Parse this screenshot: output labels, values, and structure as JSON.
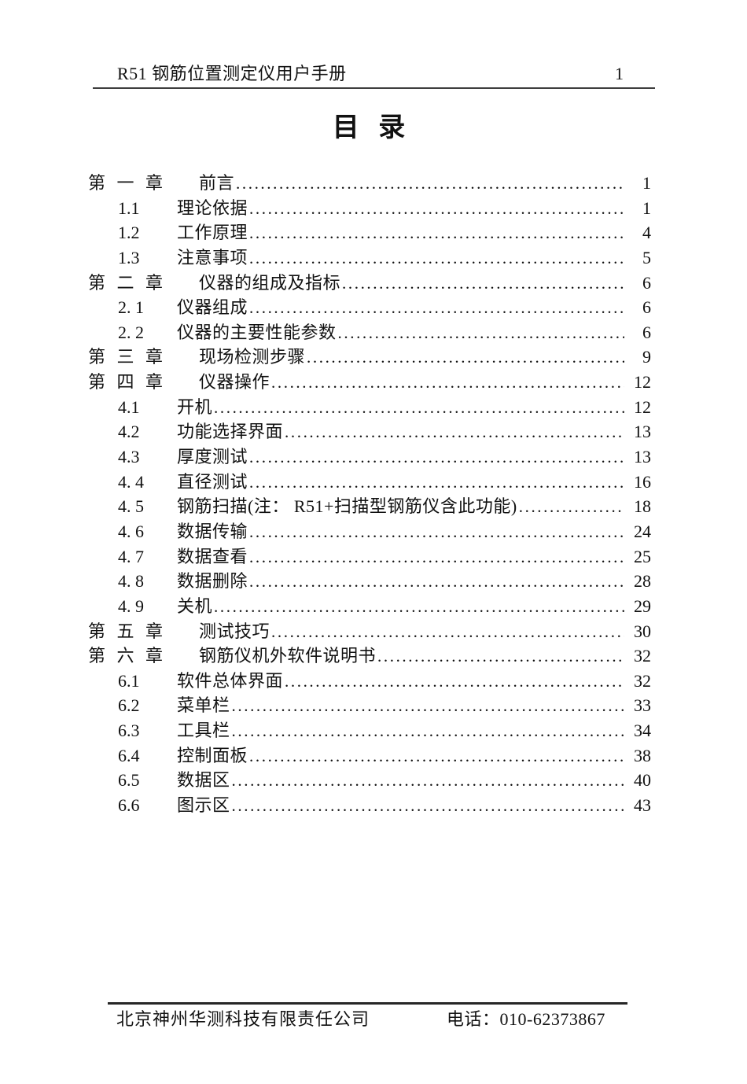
{
  "header": {
    "title": "R51 钢筋位置测定仪用户手册",
    "page_number": "1"
  },
  "doc_title": "目 录",
  "toc": {
    "entries": [
      {
        "num": "第 一 章",
        "title": "前言",
        "page": "1"
      },
      {
        "num": "1.1",
        "title": "理论依据",
        "page": "1"
      },
      {
        "num": "1.2",
        "title": "工作原理",
        "page": "4"
      },
      {
        "num": "1.3",
        "title": "注意事项",
        "page": "5"
      },
      {
        "num": "第 二 章",
        "title": "仪器的组成及指标",
        "page": "6"
      },
      {
        "num": "2. 1",
        "title": "仪器组成",
        "page": "6"
      },
      {
        "num": "2. 2",
        "title": "仪器的主要性能参数",
        "page": "6"
      },
      {
        "num": "第 三 章",
        "title": "现场检测步骤",
        "page": "9"
      },
      {
        "num": "第 四 章",
        "title": "仪器操作",
        "page": "12"
      },
      {
        "num": "4.1",
        "title": "开机",
        "page": "12"
      },
      {
        "num": "4.2",
        "title": "功能选择界面",
        "page": "13"
      },
      {
        "num": "4.3",
        "title": "厚度测试",
        "page": "13"
      },
      {
        "num": "4. 4",
        "title": "直径测试",
        "page": "16"
      },
      {
        "num": "4. 5",
        "title": "钢筋扫描(注： R51+扫描型钢筋仪含此功能)",
        "page": "18"
      },
      {
        "num": "4. 6",
        "title": "数据传输",
        "page": "24"
      },
      {
        "num": "4. 7",
        "title": "数据查看",
        "page": "25"
      },
      {
        "num": "4. 8",
        "title": "数据删除",
        "page": "28"
      },
      {
        "num": "4. 9",
        "title": "关机",
        "page": "29"
      },
      {
        "num": "第 五 章",
        "title": "测试技巧",
        "page": "30"
      },
      {
        "num": "第 六 章",
        "title": "钢筋仪机外软件说明书",
        "page": "32"
      },
      {
        "num": "6.1",
        "title": "软件总体界面",
        "page": "32"
      },
      {
        "num": "6.2",
        "title": "菜单栏",
        "page": "33"
      },
      {
        "num": "6.3",
        "title": "工具栏",
        "page": "34"
      },
      {
        "num": "6.4",
        "title": "控制面板",
        "page": "38"
      },
      {
        "num": "6.5",
        "title": "数据区",
        "page": "40"
      },
      {
        "num": "6.6",
        "title": "图示区",
        "page": "43"
      }
    ]
  },
  "footer": {
    "company": "北京神州华测科技有限责任公司",
    "phone": "电话：010-62373867"
  }
}
